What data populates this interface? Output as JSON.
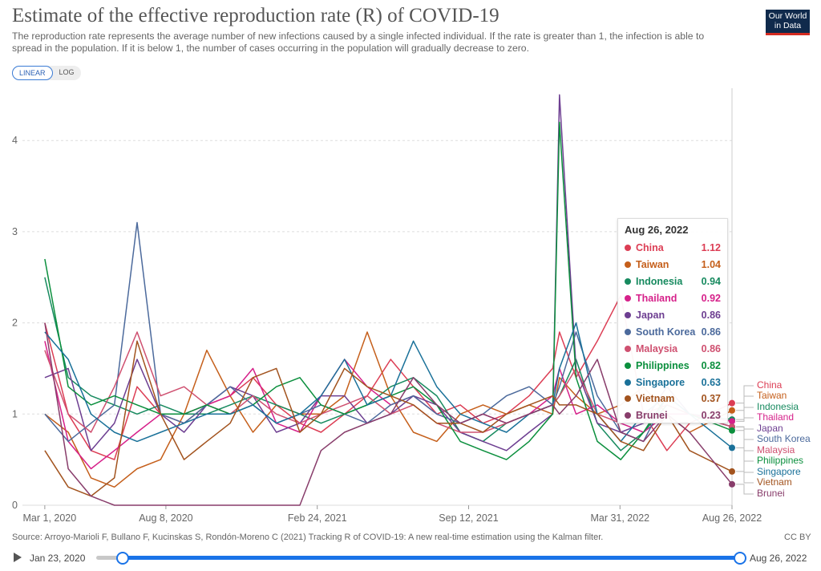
{
  "header": {
    "title": "Estimate of the effective reproduction rate (R) of COVID-19",
    "subtitle": "The reproduction rate represents the average number of new infections caused by a single infected individual. If the rate is greater than 1, the infection is able to spread in the population. If it is below 1, the number of cases occurring in the population will gradually decrease to zero.",
    "logo": "Our World in Data",
    "scale_toggle": {
      "linear": "LINEAR",
      "log": "LOG",
      "selected": "LINEAR"
    }
  },
  "chart_data": {
    "type": "line",
    "title": "Estimate of the effective reproduction rate (R) of COVID-19",
    "ylim": [
      0,
      4.6
    ],
    "y_ticks": [
      "0",
      "1",
      "2",
      "3",
      "4"
    ],
    "x_ticks": [
      "Mar 1, 2020",
      "Aug 8, 2020",
      "Feb 24, 2021",
      "Sep 12, 2021",
      "Mar 31, 2022",
      "Aug 26, 2022"
    ],
    "x_range": [
      "2020-01-23",
      "2022-08-26"
    ],
    "grid": "horizontal dashed",
    "legend": "right (line end labels)",
    "x": [
      "2020-03-01",
      "2020-04-01",
      "2020-05-01",
      "2020-06-01",
      "2020-07-01",
      "2020-08-01",
      "2020-09-01",
      "2020-10-01",
      "2020-11-01",
      "2020-12-01",
      "2021-01-01",
      "2021-02-01",
      "2021-03-01",
      "2021-04-01",
      "2021-05-01",
      "2021-06-01",
      "2021-07-01",
      "2021-08-01",
      "2021-09-01",
      "2021-10-01",
      "2021-11-01",
      "2021-12-01",
      "2022-01-01",
      "2022-01-10",
      "2022-02-01",
      "2022-03-01",
      "2022-04-01",
      "2022-05-01",
      "2022-06-01",
      "2022-07-01",
      "2022-08-26"
    ],
    "series": [
      {
        "name": "China",
        "color": "#dc3d54",
        "values": [
          2.0,
          1.0,
          0.6,
          0.5,
          1.3,
          1.0,
          0.9,
          1.1,
          1.2,
          1.4,
          1.1,
          0.9,
          0.8,
          1.0,
          1.2,
          1.6,
          1.3,
          1.0,
          1.1,
          0.9,
          1.0,
          1.2,
          1.5,
          1.9,
          1.4,
          1.8,
          2.3,
          1.0,
          0.6,
          0.9,
          1.12
        ]
      },
      {
        "name": "Taiwan",
        "color": "#c55f1b",
        "values": [
          1.0,
          0.8,
          0.3,
          0.2,
          0.4,
          0.5,
          1.0,
          1.7,
          1.2,
          0.8,
          1.1,
          1.0,
          1.0,
          1.2,
          1.9,
          1.2,
          0.8,
          0.7,
          1.0,
          1.1,
          1.0,
          1.1,
          1.0,
          1.4,
          1.2,
          1.0,
          1.1,
          1.3,
          1.0,
          0.8,
          1.04
        ]
      },
      {
        "name": "Indonesia",
        "color": "#178a5f",
        "values": [
          2.5,
          1.4,
          1.2,
          1.1,
          1.0,
          1.1,
          1.0,
          1.0,
          1.1,
          1.2,
          1.1,
          1.0,
          0.9,
          1.0,
          1.1,
          1.3,
          1.4,
          1.2,
          0.8,
          0.7,
          0.9,
          1.0,
          1.1,
          1.2,
          1.6,
          0.9,
          0.6,
          0.8,
          1.1,
          1.0,
          0.94
        ]
      },
      {
        "name": "Thailand",
        "color": "#d6218a",
        "values": [
          1.8,
          0.7,
          0.4,
          0.6,
          0.8,
          1.0,
          1.0,
          1.1,
          1.2,
          1.5,
          0.9,
          0.8,
          1.2,
          1.6,
          1.3,
          1.1,
          1.2,
          1.0,
          0.9,
          1.0,
          0.9,
          1.0,
          1.2,
          1.5,
          1.0,
          1.1,
          0.9,
          0.8,
          1.0,
          1.0,
          0.92
        ]
      },
      {
        "name": "Japan",
        "color": "#6d3e91",
        "values": [
          1.4,
          1.5,
          0.6,
          0.9,
          1.6,
          1.0,
          0.8,
          1.1,
          1.3,
          1.2,
          0.8,
          0.9,
          1.2,
          1.2,
          0.9,
          1.0,
          1.2,
          1.1,
          0.8,
          0.7,
          0.6,
          0.8,
          1.0,
          4.5,
          1.5,
          0.9,
          0.8,
          0.9,
          1.3,
          1.0,
          0.86
        ]
      },
      {
        "name": "South Korea",
        "color": "#4c6a9c",
        "values": [
          1.0,
          0.7,
          0.9,
          1.1,
          3.1,
          1.0,
          0.9,
          1.1,
          1.3,
          1.1,
          0.9,
          1.0,
          1.1,
          1.0,
          0.9,
          1.1,
          1.2,
          1.0,
          0.9,
          1.0,
          1.2,
          1.3,
          1.1,
          1.3,
          1.9,
          1.2,
          0.8,
          0.7,
          1.2,
          1.0,
          0.86
        ]
      },
      {
        "name": "Malaysia",
        "color": "#cf5070",
        "values": [
          1.7,
          1.0,
          0.8,
          1.3,
          1.9,
          1.2,
          1.3,
          1.1,
          1.0,
          1.2,
          1.0,
          0.9,
          1.0,
          1.1,
          1.2,
          1.0,
          1.1,
          0.9,
          0.8,
          0.8,
          0.9,
          1.0,
          1.1,
          1.2,
          1.5,
          1.0,
          0.9,
          1.0,
          1.1,
          1.0,
          0.86
        ]
      },
      {
        "name": "Philippines",
        "color": "#0b8f3d",
        "values": [
          2.7,
          1.3,
          1.1,
          1.2,
          1.1,
          1.0,
          1.0,
          1.1,
          1.0,
          1.1,
          1.3,
          1.4,
          1.1,
          1.0,
          1.1,
          1.2,
          1.3,
          1.1,
          0.7,
          0.6,
          0.5,
          0.7,
          1.0,
          4.2,
          1.4,
          0.7,
          0.5,
          0.8,
          1.2,
          1.0,
          0.82
        ]
      },
      {
        "name": "Singapore",
        "color": "#1a7199",
        "values": [
          1.9,
          1.6,
          1.0,
          0.8,
          0.7,
          0.8,
          0.9,
          1.0,
          1.0,
          1.1,
          0.9,
          1.0,
          1.2,
          1.6,
          1.1,
          1.2,
          1.8,
          1.3,
          1.0,
          0.9,
          0.8,
          1.0,
          1.1,
          1.5,
          2.0,
          1.0,
          0.7,
          1.0,
          1.2,
          1.0,
          0.63
        ]
      },
      {
        "name": "Vietnam",
        "color": "#a2531e",
        "values": [
          0.6,
          0.2,
          0.1,
          0.3,
          1.8,
          1.0,
          0.5,
          0.7,
          0.9,
          1.4,
          1.5,
          0.8,
          1.0,
          1.5,
          1.3,
          1.2,
          1.1,
          0.9,
          0.9,
          0.8,
          1.0,
          1.1,
          1.2,
          1.1,
          1.1,
          1.0,
          0.7,
          0.6,
          1.0,
          0.6,
          0.37
        ]
      },
      {
        "name": "Brunei",
        "color": "#883d6b",
        "values": [
          2.0,
          0.4,
          0.1,
          0.0,
          0.0,
          0.0,
          0.0,
          0.0,
          0.0,
          0.0,
          0.0,
          0.0,
          0.6,
          0.8,
          0.9,
          1.0,
          1.4,
          1.1,
          0.9,
          1.0,
          0.9,
          1.0,
          1.1,
          1.0,
          1.2,
          1.6,
          0.8,
          0.7,
          1.0,
          0.8,
          0.23
        ]
      }
    ]
  },
  "tooltip": {
    "date": "Aug 26, 2022",
    "rows": [
      {
        "name": "China",
        "value": "1.12"
      },
      {
        "name": "Taiwan",
        "value": "1.04"
      },
      {
        "name": "Indonesia",
        "value": "0.94"
      },
      {
        "name": "Thailand",
        "value": "0.92"
      },
      {
        "name": "Japan",
        "value": "0.86"
      },
      {
        "name": "South Korea",
        "value": "0.86"
      },
      {
        "name": "Malaysia",
        "value": "0.86"
      },
      {
        "name": "Philippines",
        "value": "0.82"
      },
      {
        "name": "Singapore",
        "value": "0.63"
      },
      {
        "name": "Vietnam",
        "value": "0.37"
      },
      {
        "name": "Brunei",
        "value": "0.23"
      }
    ]
  },
  "footer": {
    "source": "Source: Arroyo-Marioli F, Bullano F, Kucinskas S, Rondón-Moreno C (2021) Tracking R of COVID-19: A new real-time estimation using the Kalman filter.",
    "license": "CC BY"
  },
  "timeline": {
    "start": "Jan 23, 2020",
    "end": "Aug 26, 2022"
  }
}
